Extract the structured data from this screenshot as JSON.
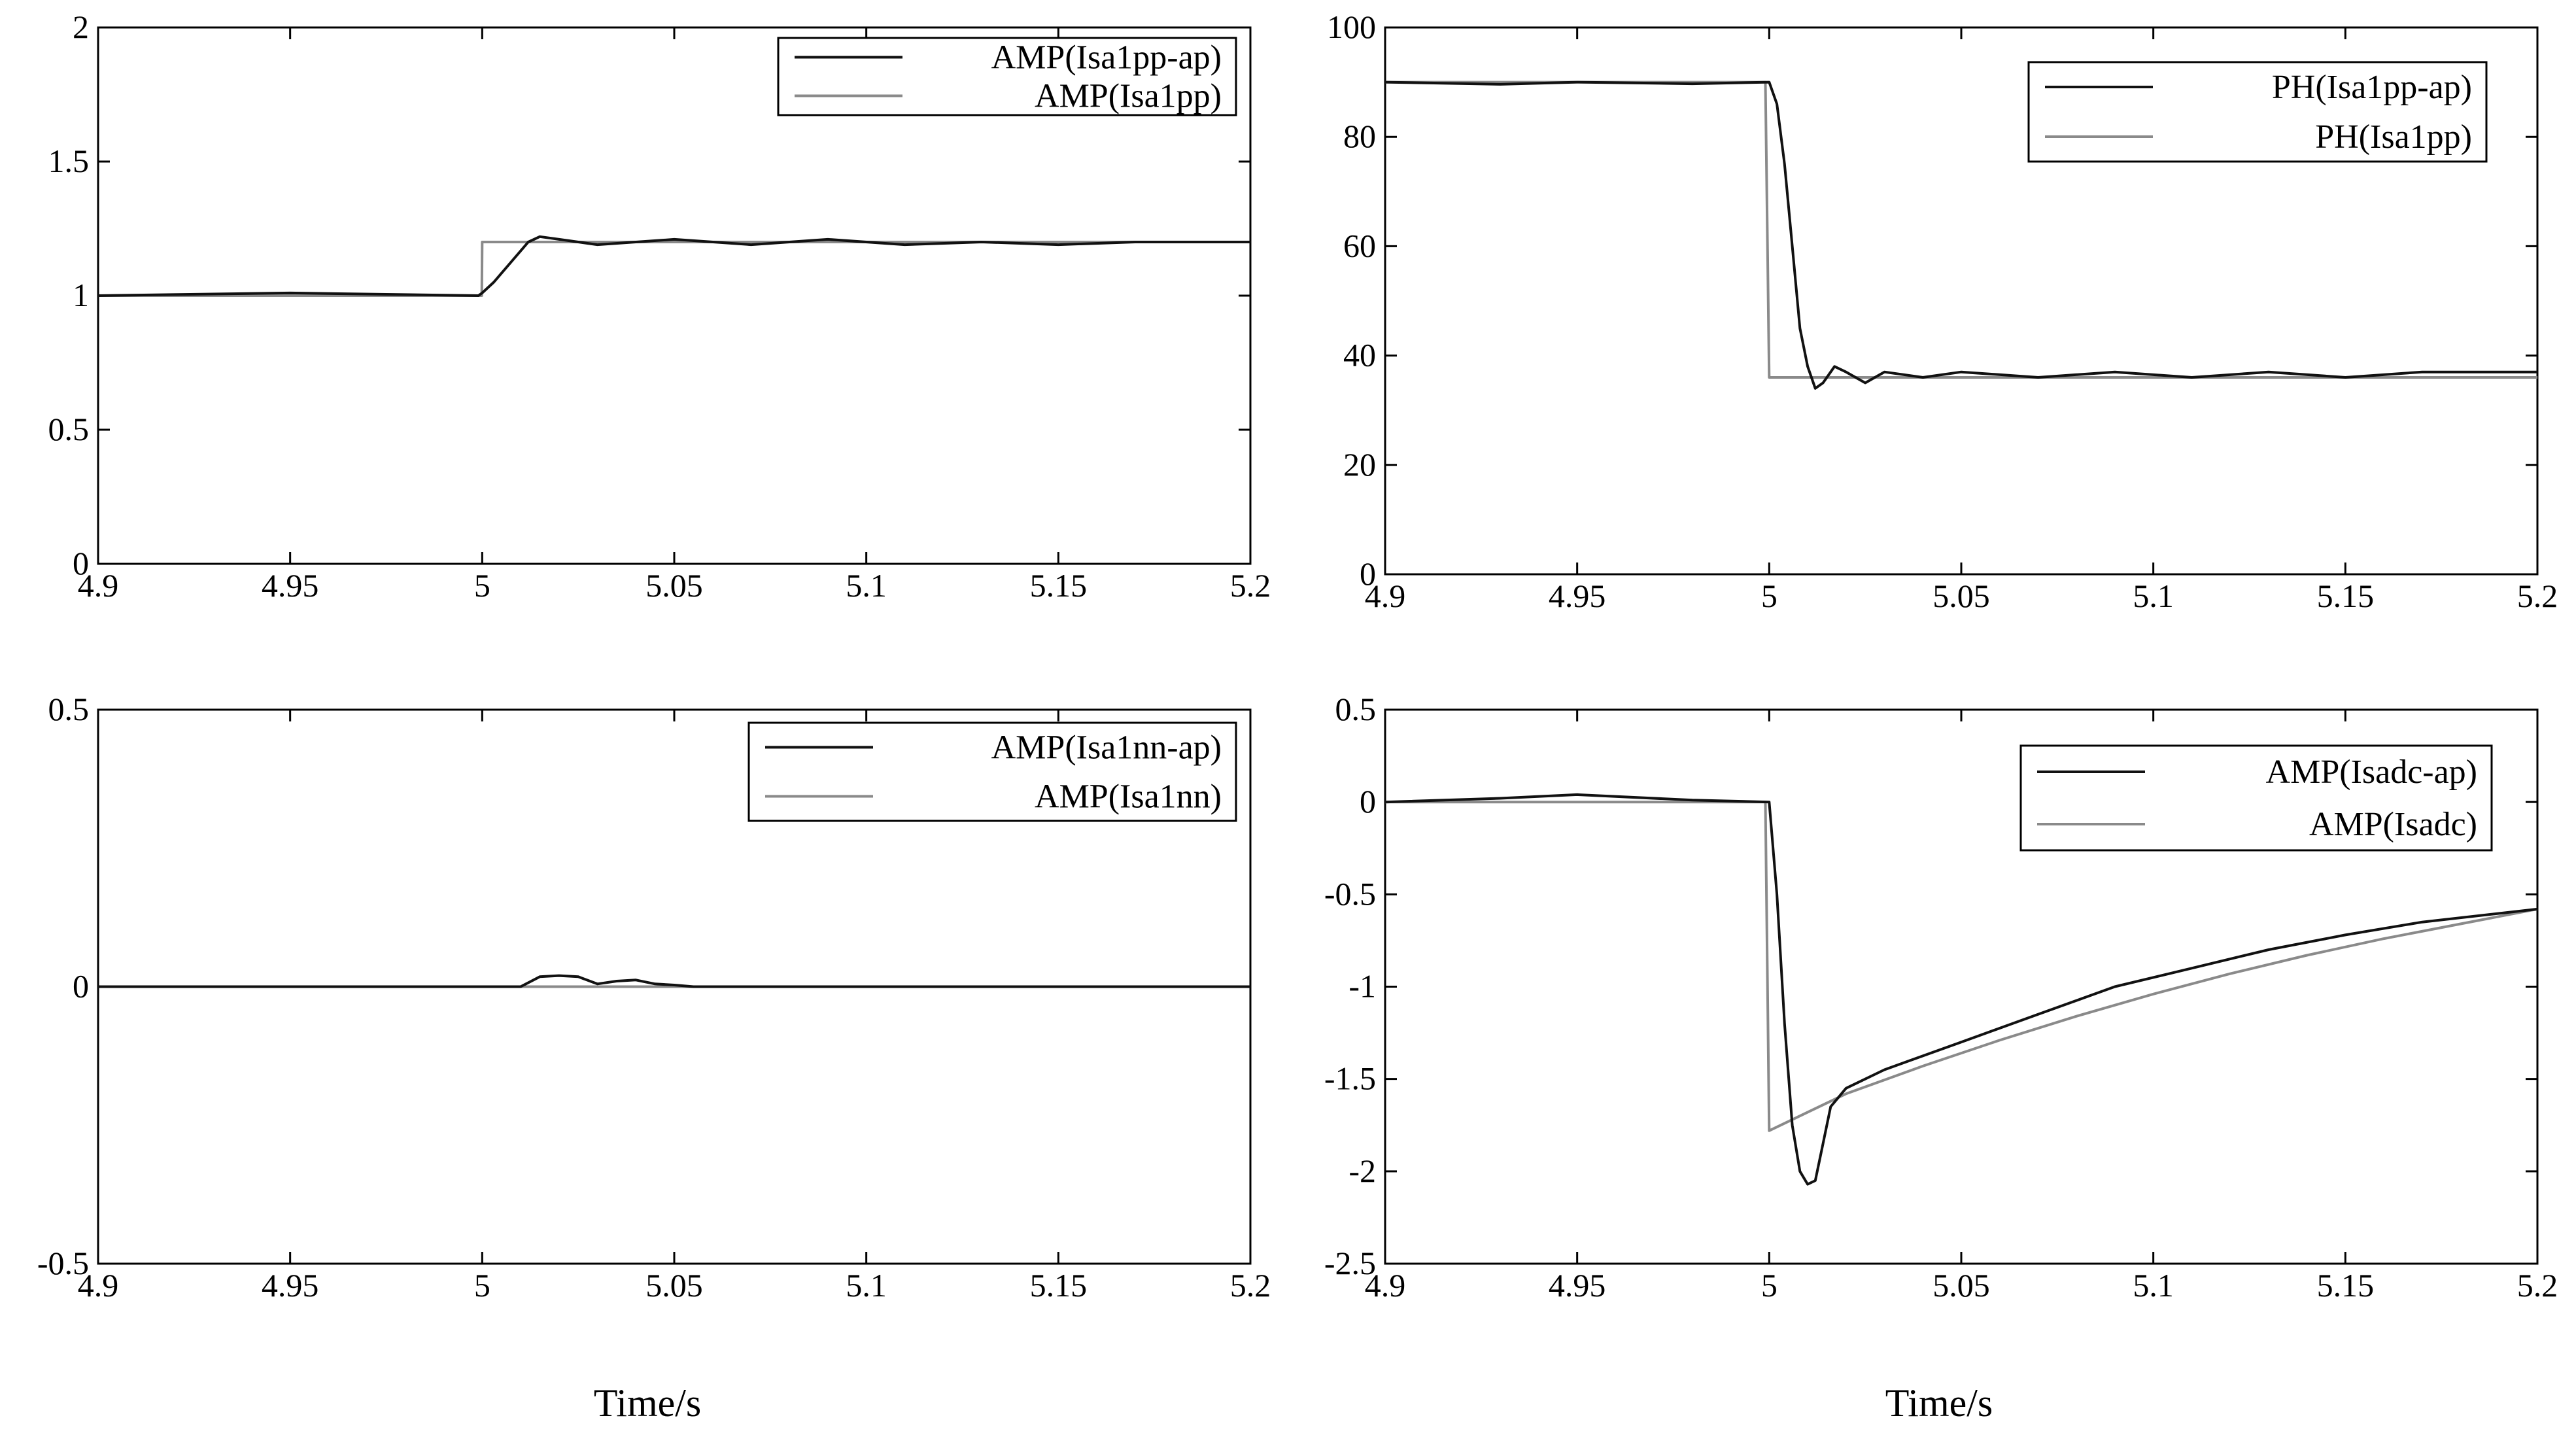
{
  "chart_data": [
    {
      "type": "line",
      "xlim": [
        4.9,
        5.2
      ],
      "ylim": [
        0,
        2
      ],
      "x_ticks": [
        "4.9",
        "4.95",
        "5",
        "5.05",
        "5.1",
        "5.15",
        "5.2"
      ],
      "y_ticks": [
        "0",
        "0.5",
        "1",
        "1.5",
        "2"
      ],
      "grid": false,
      "legend_position": "top-right",
      "series": [
        {
          "name": "AMP(Isa1pp-ap)",
          "color": "#111111",
          "x": [
            4.9,
            4.95,
            4.999,
            5.0,
            5.003,
            5.006,
            5.009,
            5.012,
            5.015,
            5.02,
            5.03,
            5.05,
            5.07,
            5.09,
            5.11,
            5.13,
            5.15,
            5.17,
            5.2
          ],
          "y": [
            1.0,
            1.01,
            1.0,
            1.01,
            1.05,
            1.1,
            1.15,
            1.2,
            1.22,
            1.21,
            1.19,
            1.21,
            1.19,
            1.21,
            1.19,
            1.2,
            1.19,
            1.2,
            1.2
          ]
        },
        {
          "name": "AMP(Isa1pp)",
          "color": "#8a8a8a",
          "x": [
            4.9,
            4.9999,
            5.0,
            5.2
          ],
          "y": [
            1.0,
            1.0,
            1.2,
            1.2
          ]
        }
      ]
    },
    {
      "type": "line",
      "xlim": [
        4.9,
        5.2
      ],
      "ylim": [
        0,
        100
      ],
      "x_ticks": [
        "4.9",
        "4.95",
        "5",
        "5.05",
        "5.1",
        "5.15",
        "5.2"
      ],
      "y_ticks": [
        "0",
        "20",
        "40",
        "60",
        "80",
        "100"
      ],
      "grid": false,
      "legend_position": "top-right",
      "series": [
        {
          "name": "PH(Isa1pp-ap)",
          "color": "#111111",
          "x": [
            4.9,
            4.93,
            4.95,
            4.98,
            5.0,
            5.002,
            5.004,
            5.006,
            5.008,
            5.01,
            5.012,
            5.014,
            5.017,
            5.02,
            5.025,
            5.03,
            5.04,
            5.05,
            5.07,
            5.09,
            5.11,
            5.13,
            5.15,
            5.17,
            5.2
          ],
          "y": [
            90,
            89.6,
            90,
            89.7,
            90,
            86,
            75,
            60,
            45,
            38,
            34,
            35,
            38,
            37,
            35,
            37,
            36,
            37,
            36,
            37,
            36,
            37,
            36,
            37,
            37
          ]
        },
        {
          "name": "PH(Isa1pp)",
          "color": "#8a8a8a",
          "x": [
            4.9,
            4.999,
            5.0,
            5.2
          ],
          "y": [
            90,
            90,
            36,
            36
          ]
        }
      ]
    },
    {
      "type": "line",
      "xlim": [
        4.9,
        5.2
      ],
      "ylim": [
        -0.5,
        0.5
      ],
      "x_ticks": [
        "4.9",
        "4.95",
        "5",
        "5.05",
        "5.1",
        "5.15",
        "5.2"
      ],
      "y_ticks": [
        "-0.5",
        "0",
        "0.5"
      ],
      "grid": false,
      "legend_position": "top-right",
      "series": [
        {
          "name": "AMP(Isa1nn-ap)",
          "color": "#111111",
          "x": [
            4.9,
            5.01,
            5.015,
            5.02,
            5.025,
            5.03,
            5.035,
            5.04,
            5.045,
            5.05,
            5.055,
            5.2
          ],
          "y": [
            0,
            0,
            0.018,
            0.02,
            0.018,
            0.005,
            0.01,
            0.012,
            0.005,
            0.003,
            0,
            0
          ]
        },
        {
          "name": "AMP(Isa1nn)",
          "color": "#8a8a8a",
          "x": [
            4.9,
            5.2
          ],
          "y": [
            0,
            0
          ]
        }
      ]
    },
    {
      "type": "line",
      "xlim": [
        4.9,
        5.2
      ],
      "ylim": [
        -2.5,
        0.5
      ],
      "x_ticks": [
        "4.9",
        "4.95",
        "5",
        "5.05",
        "5.1",
        "5.15",
        "5.2"
      ],
      "y_ticks": [
        "-2.5",
        "-2",
        "-1.5",
        "-1",
        "-0.5",
        "0",
        "0.5"
      ],
      "grid": false,
      "legend_position": "top-right",
      "series": [
        {
          "name": "AMP(Isadc-ap)",
          "color": "#111111",
          "x": [
            4.9,
            4.93,
            4.95,
            4.98,
            5.0,
            5.002,
            5.004,
            5.006,
            5.008,
            5.01,
            5.012,
            5.014,
            5.016,
            5.018,
            5.02,
            5.03,
            5.05,
            5.07,
            5.09,
            5.11,
            5.13,
            5.15,
            5.17,
            5.2
          ],
          "y": [
            0,
            0.02,
            0.04,
            0.01,
            0,
            -0.5,
            -1.2,
            -1.75,
            -2.0,
            -2.07,
            -2.05,
            -1.85,
            -1.65,
            -1.6,
            -1.55,
            -1.45,
            -1.3,
            -1.15,
            -1.0,
            -0.9,
            -0.8,
            -0.72,
            -0.65,
            -0.58
          ]
        },
        {
          "name": "AMP(Isadc)",
          "color": "#8a8a8a",
          "x": [
            4.9,
            4.999,
            5.0,
            5.02,
            5.04,
            5.06,
            5.08,
            5.1,
            5.12,
            5.14,
            5.16,
            5.18,
            5.2
          ],
          "y": [
            0,
            0,
            -1.78,
            -1.58,
            -1.43,
            -1.29,
            -1.16,
            -1.04,
            -0.93,
            -0.83,
            -0.74,
            -0.66,
            -0.58
          ]
        }
      ]
    }
  ],
  "xlabels": [
    "Time/s",
    "Time/s"
  ]
}
